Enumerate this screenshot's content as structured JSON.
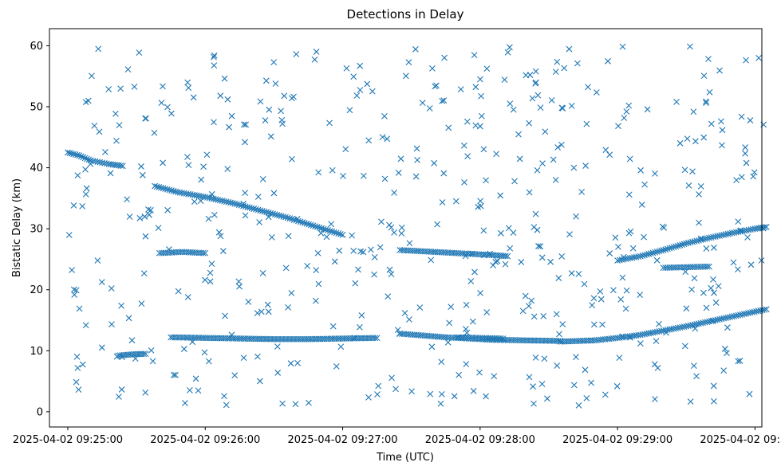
{
  "chart_data": {
    "type": "scatter",
    "title": "Detections in Delay",
    "xlabel": "Time (UTC)",
    "ylabel": "Bistatic Delay (km)",
    "marker": "x",
    "color": "#1f77b4",
    "grid": false,
    "legend": "none",
    "xlim": [
      "2025-04-02 09:24:52",
      "2025-04-02 09:30:03"
    ],
    "ylim": [
      -2.5,
      62.8
    ],
    "x_ticks": [
      "2025-04-02 09:25:00",
      "2025-04-02 09:26:00",
      "2025-04-02 09:27:00",
      "2025-04-02 09:28:00",
      "2025-04-02 09:29:00",
      "2025-04-02 09:30:00"
    ],
    "y_ticks": [
      0,
      10,
      20,
      30,
      40,
      50,
      60
    ],
    "tracks": [
      {
        "x": [
          "2025-04-02 09:25:00",
          "2025-04-02 09:25:05",
          "2025-04-02 09:25:10",
          "2025-04-02 09:25:14",
          "2025-04-02 09:25:18",
          "2025-04-02 09:25:24"
        ],
        "y": [
          42.5,
          42.0,
          41.2,
          40.9,
          40.6,
          40.3
        ]
      },
      {
        "x": [
          "2025-04-02 09:25:38",
          "2025-04-02 09:25:48",
          "2025-04-02 09:26:00",
          "2025-04-02 09:26:12",
          "2025-04-02 09:26:24",
          "2025-04-02 09:26:36",
          "2025-04-02 09:26:48",
          "2025-04-02 09:27:00"
        ],
        "y": [
          37.0,
          36.0,
          35.2,
          34.2,
          33.0,
          31.8,
          30.4,
          29.0
        ]
      },
      {
        "x": [
          "2025-04-02 09:27:25",
          "2025-04-02 09:27:35",
          "2025-04-02 09:27:45",
          "2025-04-02 09:27:55",
          "2025-04-02 09:28:05",
          "2025-04-02 09:28:12"
        ],
        "y": [
          26.5,
          26.3,
          26.1,
          25.9,
          25.7,
          25.5
        ]
      },
      {
        "x": [
          "2025-04-02 09:29:00",
          "2025-04-02 09:29:10",
          "2025-04-02 09:29:20",
          "2025-04-02 09:29:30",
          "2025-04-02 09:29:40",
          "2025-04-02 09:29:50",
          "2025-04-02 09:30:00",
          "2025-04-02 09:30:05"
        ],
        "y": [
          24.8,
          25.5,
          26.5,
          27.6,
          28.5,
          29.3,
          30.0,
          30.3
        ]
      },
      {
        "x": [
          "2025-04-02 09:25:22",
          "2025-04-02 09:25:28",
          "2025-04-02 09:25:34"
        ],
        "y": [
          9.2,
          9.4,
          9.5
        ]
      },
      {
        "x": [
          "2025-04-02 09:25:45",
          "2025-04-02 09:26:00",
          "2025-04-02 09:26:15",
          "2025-04-02 09:26:30",
          "2025-04-02 09:26:45",
          "2025-04-02 09:27:00",
          "2025-04-02 09:27:15"
        ],
        "y": [
          12.2,
          12.1,
          12.0,
          11.9,
          11.9,
          12.0,
          12.1
        ]
      },
      {
        "x": [
          "2025-04-02 09:27:25",
          "2025-04-02 09:27:35",
          "2025-04-02 09:27:45",
          "2025-04-02 09:27:55",
          "2025-04-02 09:28:05",
          "2025-04-02 09:28:20",
          "2025-04-02 09:28:35"
        ],
        "y": [
          12.8,
          12.5,
          12.2,
          12.0,
          11.8,
          11.7,
          11.6
        ]
      },
      {
        "x": [
          "2025-04-02 09:28:35",
          "2025-04-02 09:28:50",
          "2025-04-02 09:29:00",
          "2025-04-02 09:29:10",
          "2025-04-02 09:29:20",
          "2025-04-02 09:29:30",
          "2025-04-02 09:29:40",
          "2025-04-02 09:29:50",
          "2025-04-02 09:30:05"
        ],
        "y": [
          11.5,
          11.7,
          12.1,
          12.6,
          13.3,
          14.0,
          14.8,
          15.6,
          16.8
        ]
      },
      {
        "x": [
          "2025-04-02 09:25:40",
          "2025-04-02 09:25:50",
          "2025-04-02 09:26:00"
        ],
        "y": [
          26.0,
          26.2,
          26.0
        ]
      },
      {
        "x": [
          "2025-04-02 09:27:50",
          "2025-04-02 09:28:00",
          "2025-04-02 09:28:10"
        ],
        "y": [
          12.2,
          12.1,
          12.0
        ]
      },
      {
        "x": [
          "2025-04-02 09:29:20",
          "2025-04-02 09:29:30",
          "2025-04-02 09:29:40"
        ],
        "y": [
          23.6,
          23.7,
          23.8
        ]
      }
    ],
    "noise": {
      "x_range": [
        "2025-04-02 09:25:00",
        "2025-04-02 09:30:05"
      ],
      "y_range": [
        1,
        60
      ],
      "count": 520
    }
  }
}
